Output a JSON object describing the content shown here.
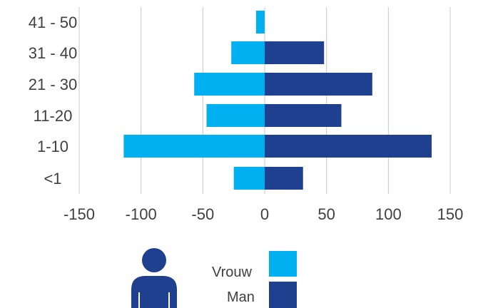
{
  "chart_data": {
    "type": "bar",
    "orientation": "horizontal",
    "stacked_diverging": true,
    "categories": [
      "<1",
      "1-10",
      "11-20",
      "21 - 30",
      "31 - 40",
      "41 - 50"
    ],
    "series": [
      {
        "name": "Vrouw",
        "values": [
          -25,
          -114,
          -47,
          -57,
          -27,
          -7
        ],
        "color": "#00b0f0"
      },
      {
        "name": "Man",
        "values": [
          31,
          135,
          62,
          87,
          48,
          0
        ],
        "color": "#1f3f8f"
      }
    ],
    "xlim": [
      -150,
      150
    ],
    "xticks": [
      "-150",
      "-100",
      "-50",
      "0",
      "50",
      "100",
      "150"
    ],
    "grid": true,
    "legend_position": "bottom"
  },
  "legend": {
    "icon": "person-icon",
    "icon_color": "#1f3f8f",
    "items": [
      {
        "label": "Vrouw",
        "color": "#00b0f0"
      },
      {
        "label": "Man",
        "color": "#1f3f8f"
      }
    ]
  }
}
